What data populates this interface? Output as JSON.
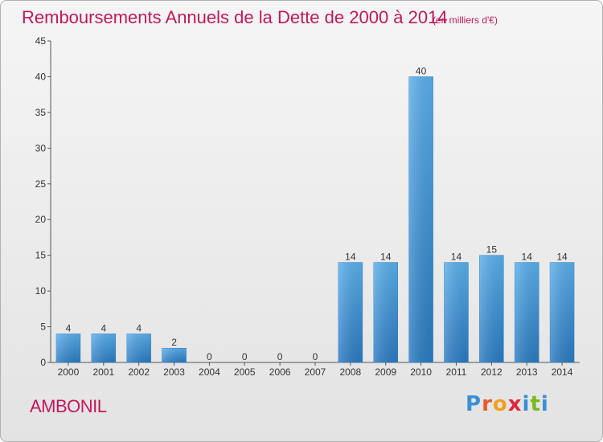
{
  "header": {
    "title": "Remboursements Annuels de la Dette de 2000 à 2014",
    "subtitle": "(en milliers d'€)"
  },
  "footer": {
    "commune": "AMBONIL",
    "logo_letters": [
      "P",
      "r",
      "o",
      "x",
      "i",
      "t",
      "i"
    ]
  },
  "colors": {
    "accent": "#c2185b",
    "bar_top": "#5aaeea",
    "bar_bottom": "#2a7ac0",
    "logo": [
      "#3a8fd6",
      "#e65a2a",
      "#f0a020",
      "#e0263c",
      "#3a8fd6",
      "#7ab820",
      "#3a8fd6"
    ]
  },
  "chart_data": {
    "type": "bar",
    "title": "Remboursements Annuels de la Dette de 2000 à 2014",
    "subtitle": "(en milliers d'€)",
    "categories": [
      "2000",
      "2001",
      "2002",
      "2003",
      "2004",
      "2005",
      "2006",
      "2007",
      "2008",
      "2009",
      "2010",
      "2011",
      "2012",
      "2013",
      "2014"
    ],
    "values": [
      4,
      4,
      4,
      2,
      0,
      0,
      0,
      0,
      14,
      14,
      40,
      14,
      15,
      14,
      14
    ],
    "ylim": [
      0,
      45
    ],
    "yticks": [
      0,
      5,
      10,
      15,
      20,
      25,
      30,
      35,
      40,
      45
    ],
    "grid": false
  }
}
